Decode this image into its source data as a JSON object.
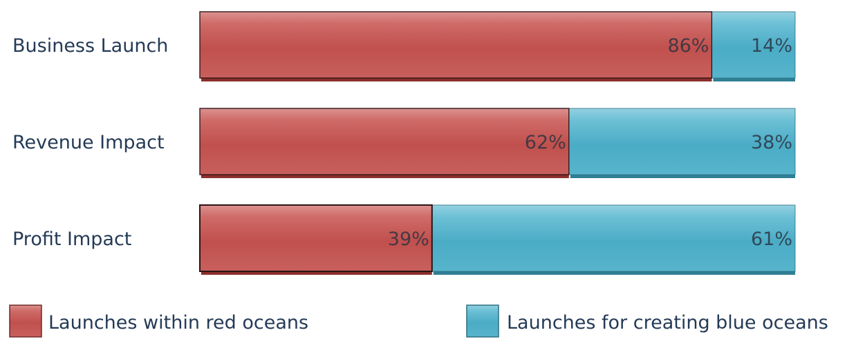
{
  "chart_data": {
    "type": "bar",
    "stacked": true,
    "orientation": "horizontal",
    "percent_stacked": true,
    "categories": [
      "Business Launch",
      "Revenue Impact",
      "Profit Impact"
    ],
    "series": [
      {
        "name": "Launches within red oceans",
        "values": [
          86,
          62,
          39
        ],
        "labels": [
          "86%",
          "62%",
          "39%"
        ],
        "color": "#c0504d"
      },
      {
        "name": "Launches for creating blue oceans",
        "values": [
          14,
          38,
          61
        ],
        "labels": [
          "14%",
          "38%",
          "61%"
        ],
        "color": "#4bacc6"
      }
    ],
    "xlim": [
      0,
      100
    ],
    "grid": false,
    "legend": "bottom"
  }
}
